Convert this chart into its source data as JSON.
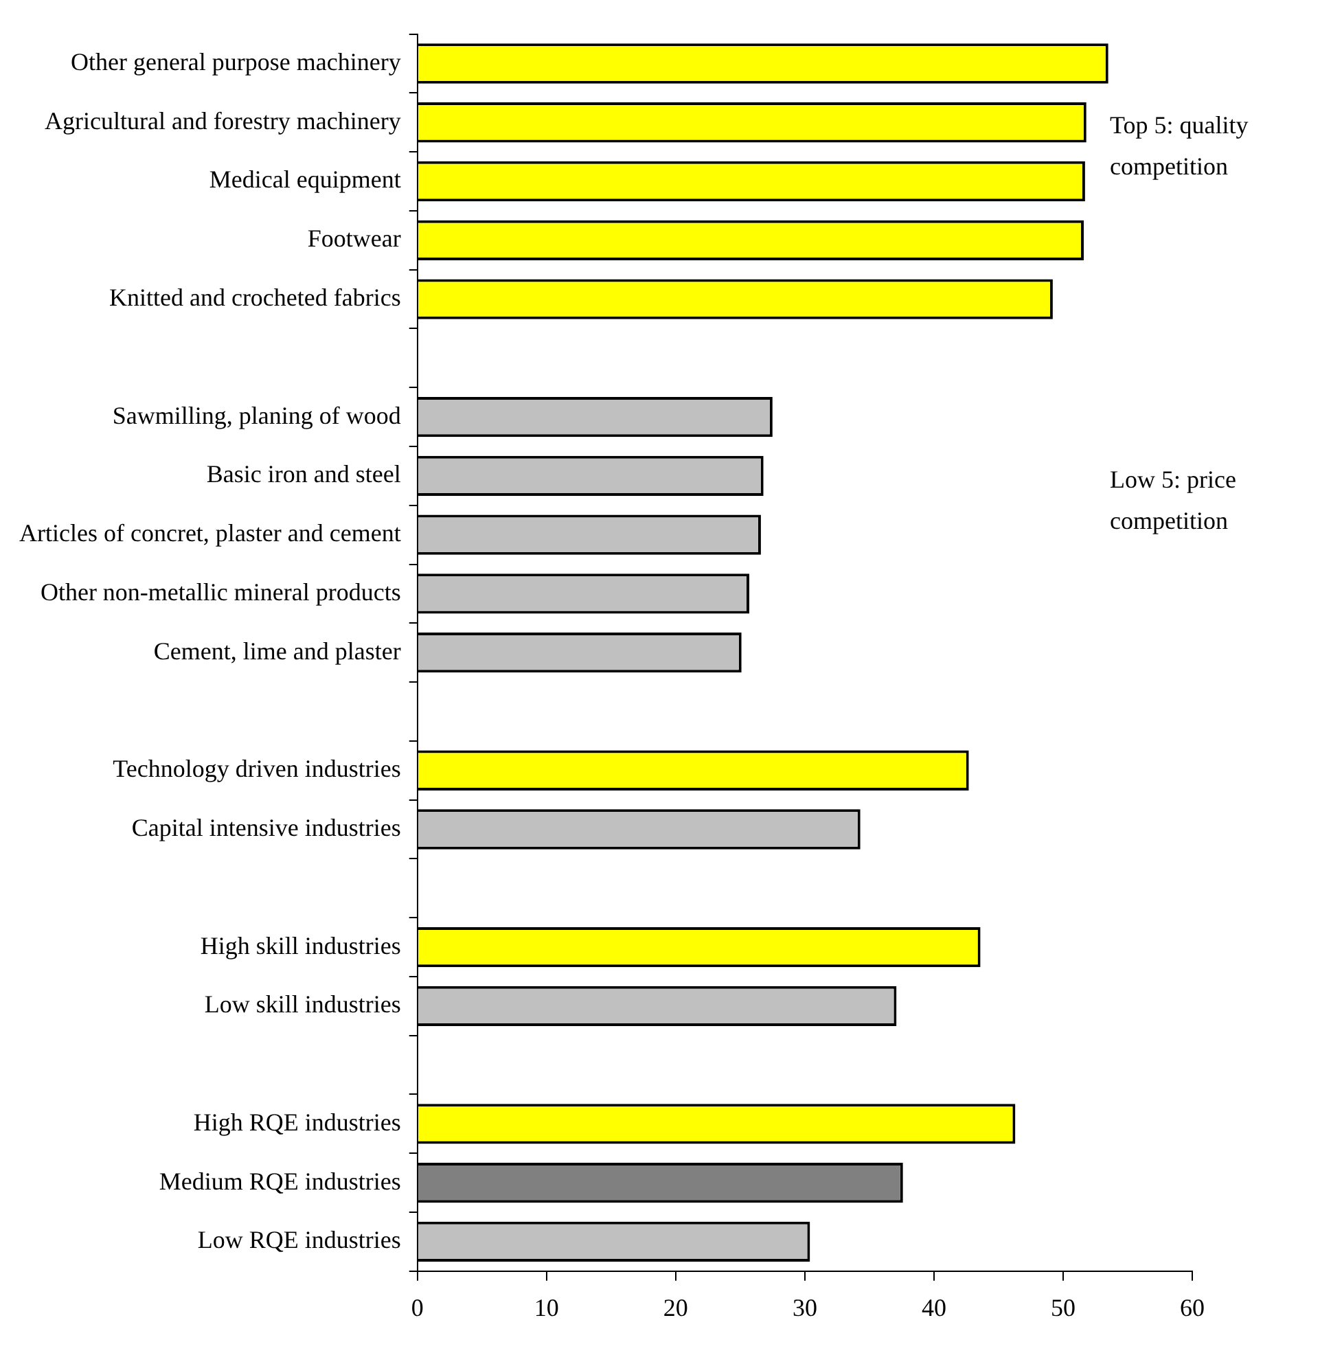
{
  "chart_data": {
    "type": "bar",
    "orientation": "horizontal",
    "categories": [
      "Other general purpose machinery",
      "Agricultural and forestry machinery",
      "Medical equipment",
      "Footwear",
      "Knitted and crocheted fabrics",
      null,
      "Sawmilling, planing of wood",
      "Basic iron and steel",
      "Articles of concret, plaster and cement",
      "Other non-metallic mineral products",
      "Cement, lime and plaster",
      null,
      "Technology driven industries",
      "Capital intensive industries",
      null,
      "High skill industries",
      "Low skill industries",
      null,
      "High RQE industries",
      "Medium RQE industries",
      "Low RQE industries"
    ],
    "values": [
      53.5,
      51.8,
      51.7,
      51.6,
      49.2,
      null,
      27.5,
      26.8,
      26.6,
      25.7,
      25.1,
      null,
      42.7,
      34.3,
      null,
      43.6,
      37.1,
      null,
      46.3,
      37.6,
      30.4
    ],
    "colors": [
      "#ffff00",
      "#ffff00",
      "#ffff00",
      "#ffff00",
      "#ffff00",
      null,
      "#c0c0c0",
      "#c0c0c0",
      "#c0c0c0",
      "#c0c0c0",
      "#c0c0c0",
      null,
      "#ffff00",
      "#c0c0c0",
      null,
      "#ffff00",
      "#c0c0c0",
      null,
      "#ffff00",
      "#808080",
      "#c0c0c0"
    ],
    "xlim": [
      0,
      60
    ],
    "xticks": [
      0,
      10,
      20,
      30,
      40,
      50,
      60
    ],
    "grid": false,
    "annotations": [
      "Top 5: quality competition",
      "Low 5: price competition"
    ]
  }
}
